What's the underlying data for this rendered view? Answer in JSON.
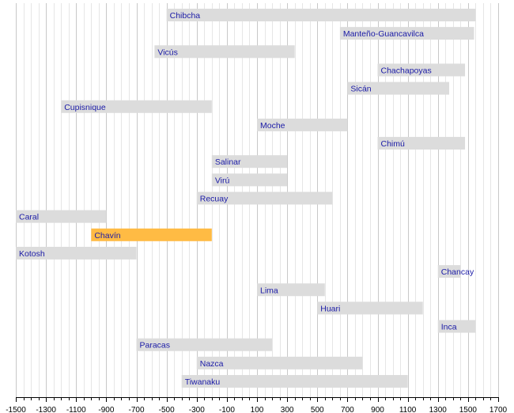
{
  "chart_data": {
    "type": "bar",
    "orientation": "horizontal-range",
    "title": "",
    "xlabel": "",
    "ylabel": "",
    "xlim": [
      -1500,
      1700
    ],
    "ticks": [
      -1500,
      -1300,
      -1100,
      -900,
      -700,
      -500,
      -300,
      -100,
      100,
      300,
      500,
      700,
      900,
      1100,
      1300,
      1500,
      1700
    ],
    "tick_labels": [
      "-1500",
      "-1300",
      "-1100",
      "-900",
      "-700",
      "-500",
      "-300",
      "-100",
      "100",
      "300",
      "500",
      "700",
      "900",
      "1100",
      "1300",
      "1500",
      "1700"
    ],
    "minor_step": 50,
    "grid": true,
    "colors": {
      "bar": "#dcdcdc",
      "highlight": "#ffbb44",
      "label": "#1a1aa6",
      "grid_major": "#c8c8c8",
      "grid_minor": "#e6e6e6",
      "axis": "#000000"
    },
    "series": [
      {
        "name": "Chibcha",
        "start": -500,
        "end": 1550
      },
      {
        "name": "Manteño-Guancavilca",
        "start": 650,
        "end": 1540
      },
      {
        "name": "Vicús",
        "start": -580,
        "end": 350
      },
      {
        "name": "Chachapoyas",
        "start": 900,
        "end": 1480
      },
      {
        "name": "Sicán",
        "start": 700,
        "end": 1375
      },
      {
        "name": "Cupisnique",
        "start": -1200,
        "end": -200
      },
      {
        "name": "Moche",
        "start": 100,
        "end": 700
      },
      {
        "name": "Chimú",
        "start": 900,
        "end": 1480
      },
      {
        "name": "Salinar",
        "start": -200,
        "end": 300
      },
      {
        "name": "Virú",
        "start": -200,
        "end": 300
      },
      {
        "name": "Recuay",
        "start": -300,
        "end": 600
      },
      {
        "name": "Caral",
        "start": -1500,
        "end": -900
      },
      {
        "name": "Chavín",
        "start": -1000,
        "end": -200,
        "highlight": true
      },
      {
        "name": "Kotosh",
        "start": -1500,
        "end": -700
      },
      {
        "name": "Chancay",
        "start": 1300,
        "end": 1450
      },
      {
        "name": "Lima",
        "start": 100,
        "end": 550
      },
      {
        "name": "Huari",
        "start": 500,
        "end": 1200
      },
      {
        "name": "Inca",
        "start": 1300,
        "end": 1550
      },
      {
        "name": "Paracas",
        "start": -700,
        "end": 200
      },
      {
        "name": "Nazca",
        "start": -300,
        "end": 800
      },
      {
        "name": "Tiwanaku",
        "start": -400,
        "end": 1100
      }
    ]
  }
}
